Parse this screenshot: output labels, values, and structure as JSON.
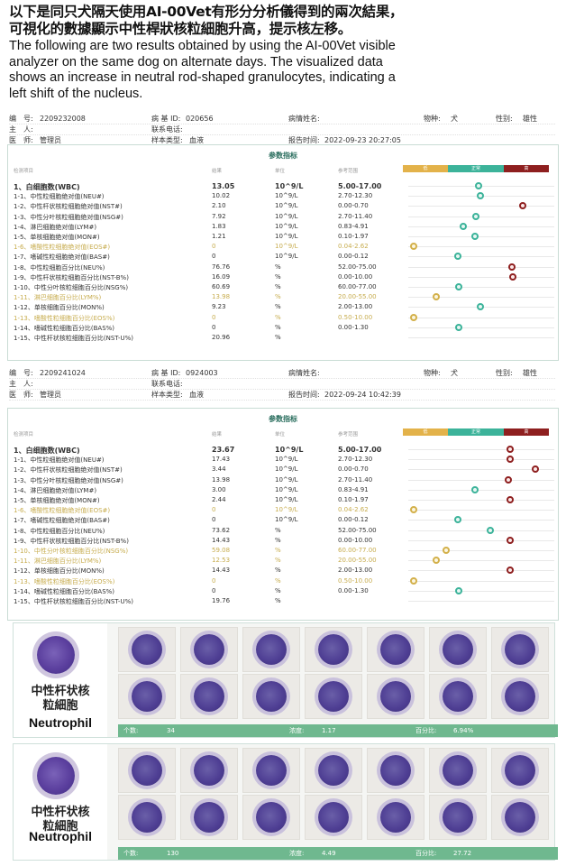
{
  "caption": {
    "zh": [
      "以下是同只犬隔天使用AI-00Vet有形分分析儀得到的兩次結果，",
      "可視化的數據顯示中性桿狀核粒細胞升高，提示核左移。"
    ],
    "en": [
      "The following are two results obtained by using the AI-00Vet visible",
      "analyzer on the same dog on alternate days. The visualized data",
      "shows an increase in neutral rod-shaped granulocytes, indicating a",
      "left shift of the nucleus."
    ]
  },
  "labels": {
    "id_label": "编　号:",
    "owner_label": "主　人:",
    "doctor_label": "医　师:",
    "case_id_label": "病 基 ID:",
    "phone_label": "联系电话:",
    "sample_label": "样本类型:",
    "case_name_label": "病情姓名:",
    "report_label": "报告时间:",
    "species_label": "物种:",
    "sex_label": "性别:",
    "panel_title": "参数指标",
    "col_item": "检测项目",
    "col_result": "结果",
    "col_unit": "单位",
    "col_ref": "参考范围",
    "scale_low": "低",
    "scale_normal": "正常",
    "scale_high": "高",
    "count_label": "个数:",
    "conc_label": "浓度:",
    "pct_label": "百分比:",
    "cell_zh_1": "中性杆状核",
    "cell_zh_2": "粒細胞",
    "cell_en": "Neutrophil"
  },
  "reports": [
    {
      "id": "2209232008",
      "doctor": "管理员",
      "case_id": "020656",
      "sample": "血液",
      "report_time": "2022-09-23 20:27:05",
      "species": "犬",
      "sex": "雄性",
      "rows": [
        {
          "name": "1、白细胞数(WBC)",
          "result": "13.05",
          "unit": "10^9/L",
          "ref": "5.00-17.00",
          "flag": "n",
          "pos": 0.47,
          "main": true
        },
        {
          "name": "1-1、中性粒细胞绝对值(NEU#)",
          "result": "10.02",
          "unit": "10^9/L",
          "ref": "2.70-12.30",
          "flag": "n",
          "pos": 0.48
        },
        {
          "name": "1-2、中性杆状核粒细胞绝对值(NST#)",
          "result": "2.10",
          "unit": "10^9/L",
          "ref": "0.00-0.70",
          "flag": "h",
          "pos": 0.78
        },
        {
          "name": "1-3、中性分叶核粒细胞绝对值(NSG#)",
          "result": "7.92",
          "unit": "10^9/L",
          "ref": "2.70-11.40",
          "flag": "n",
          "pos": 0.45
        },
        {
          "name": "1-4、淋巴细胞绝对值(LYM#)",
          "result": "1.83",
          "unit": "10^9/L",
          "ref": "0.83-4.91",
          "flag": "n",
          "pos": 0.36
        },
        {
          "name": "1-5、单核细胞绝对值(MON#)",
          "result": "1.21",
          "unit": "10^9/L",
          "ref": "0.10-1.97",
          "flag": "n",
          "pos": 0.44
        },
        {
          "name": "1-6、嗜酸性粒细胞绝对值(EOS#)",
          "result": "0",
          "unit": "10^9/L",
          "ref": "0.04-2.62",
          "flag": "l",
          "pos": 0.01,
          "low": true
        },
        {
          "name": "1-7、嗜碱性粒细胞绝对值(BAS#)",
          "result": "0",
          "unit": "10^9/L",
          "ref": "0.00-0.12",
          "flag": "n",
          "pos": 0.32
        },
        {
          "name": "1-8、中性粒细胞百分比(NEU%)",
          "result": "76.76",
          "unit": "%",
          "ref": "52.00-75.00",
          "flag": "h",
          "pos": 0.7
        },
        {
          "name": "1-9、中性杆状核粒细胞百分比(NST-B%)",
          "result": "16.09",
          "unit": "%",
          "ref": "0.00-10.00",
          "flag": "h",
          "pos": 0.71
        },
        {
          "name": "1-10、中性分叶核粒细胞百分比(NSG%)",
          "result": "60.69",
          "unit": "%",
          "ref": "60.00-77.00",
          "flag": "n",
          "pos": 0.33
        },
        {
          "name": "1-11、淋巴细胞百分比(LYM%)",
          "result": "13.98",
          "unit": "%",
          "ref": "20.00-55.00",
          "flag": "l",
          "pos": 0.17,
          "low": true
        },
        {
          "name": "1-12、单核细胞百分比(MON%)",
          "result": "9.23",
          "unit": "%",
          "ref": "2.00-13.00",
          "flag": "n",
          "pos": 0.48
        },
        {
          "name": "1-13、嗜酸性粒细胞百分比(EOS%)",
          "result": "0",
          "unit": "%",
          "ref": "0.50-10.00",
          "flag": "l",
          "pos": 0.01,
          "low": true
        },
        {
          "name": "1-14、嗜碱性粒细胞百分比(BAS%)",
          "result": "0",
          "unit": "%",
          "ref": "0.00-1.30",
          "flag": "n",
          "pos": 0.33
        },
        {
          "name": "1-15、中性杆状核粒细胞百分比(NST-U%)",
          "result": "20.96",
          "unit": "%",
          "ref": "",
          "flag": "",
          "pos": null
        }
      ]
    },
    {
      "id": "2209241024",
      "doctor": "管理员",
      "case_id": "0924003",
      "sample": "血液",
      "report_time": "2022-09-24 10:42:39",
      "species": "犬",
      "sex": "雄性",
      "rows": [
        {
          "name": "1、白细胞数(WBC)",
          "result": "23.67",
          "unit": "10^9/L",
          "ref": "5.00-17.00",
          "flag": "h",
          "pos": 0.69,
          "main": true
        },
        {
          "name": "1-1、中性粒细胞绝对值(NEU#)",
          "result": "17.43",
          "unit": "10^9/L",
          "ref": "2.70-12.30",
          "flag": "h",
          "pos": 0.69
        },
        {
          "name": "1-2、中性杆状核粒细胞绝对值(NST#)",
          "result": "3.44",
          "unit": "10^9/L",
          "ref": "0.00-0.70",
          "flag": "h",
          "pos": 0.87
        },
        {
          "name": "1-3、中性分叶核粒细胞绝对值(NSG#)",
          "result": "13.98",
          "unit": "10^9/L",
          "ref": "2.70-11.40",
          "flag": "h",
          "pos": 0.68
        },
        {
          "name": "1-4、淋巴细胞绝对值(LYM#)",
          "result": "3.00",
          "unit": "10^9/L",
          "ref": "0.83-4.91",
          "flag": "n",
          "pos": 0.44
        },
        {
          "name": "1-5、单核细胞绝对值(MON#)",
          "result": "2.44",
          "unit": "10^9/L",
          "ref": "0.10-1.97",
          "flag": "h",
          "pos": 0.69
        },
        {
          "name": "1-6、嗜酸性粒细胞绝对值(EOS#)",
          "result": "0",
          "unit": "10^9/L",
          "ref": "0.04-2.62",
          "flag": "l",
          "pos": 0.01,
          "low": true
        },
        {
          "name": "1-7、嗜碱性粒细胞绝对值(BAS#)",
          "result": "0",
          "unit": "10^9/L",
          "ref": "0.00-0.12",
          "flag": "n",
          "pos": 0.32
        },
        {
          "name": "1-8、中性粒细胞百分比(NEU%)",
          "result": "73.62",
          "unit": "%",
          "ref": "52.00-75.00",
          "flag": "n",
          "pos": 0.55
        },
        {
          "name": "1-9、中性杆状核粒细胞百分比(NST-B%)",
          "result": "14.43",
          "unit": "%",
          "ref": "0.00-10.00",
          "flag": "h",
          "pos": 0.69
        },
        {
          "name": "1-10、中性分叶核粒细胞百分比(NSG%)",
          "result": "59.08",
          "unit": "%",
          "ref": "60.00-77.00",
          "flag": "l",
          "pos": 0.24,
          "low": true
        },
        {
          "name": "1-11、淋巴细胞百分比(LYM%)",
          "result": "12.53",
          "unit": "%",
          "ref": "20.00-55.00",
          "flag": "l",
          "pos": 0.17,
          "low": true
        },
        {
          "name": "1-12、单核细胞百分比(MON%)",
          "result": "14.43",
          "unit": "%",
          "ref": "2.00-13.00",
          "flag": "h",
          "pos": 0.69
        },
        {
          "name": "1-13、嗜酸性粒细胞百分比(EOS%)",
          "result": "0",
          "unit": "%",
          "ref": "0.50-10.00",
          "flag": "l",
          "pos": 0.01,
          "low": true
        },
        {
          "name": "1-14、嗜碱性粒细胞百分比(BAS%)",
          "result": "0",
          "unit": "%",
          "ref": "0.00-1.30",
          "flag": "n",
          "pos": 0.33
        },
        {
          "name": "1-15、中性杆状核粒细胞百分比(NST-U%)",
          "result": "19.76",
          "unit": "%",
          "ref": "",
          "flag": "",
          "pos": null
        }
      ]
    }
  ],
  "cell_panels": [
    {
      "count": "34",
      "conc": "1.17",
      "pct": "6.94%"
    },
    {
      "count": "130",
      "conc": "4.49",
      "pct": "27.72"
    }
  ],
  "colors": {
    "low": "#e3b24a",
    "normal": "#3cb39a",
    "high": "#8e1f1f"
  }
}
